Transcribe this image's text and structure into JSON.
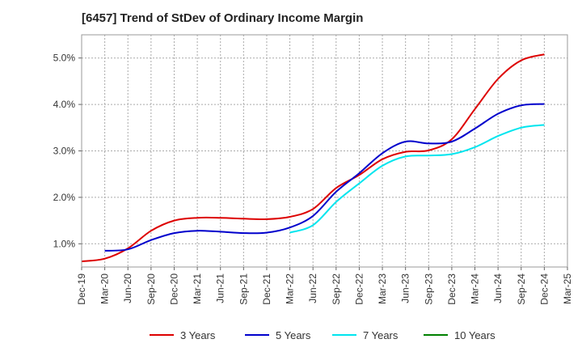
{
  "chart_data": {
    "type": "line",
    "title": "[6457]  Trend of StDev of Ordinary Income Margin",
    "xlabel": "",
    "ylabel": "",
    "x": [
      "Dec-19",
      "Mar-20",
      "Jun-20",
      "Sep-20",
      "Dec-20",
      "Mar-21",
      "Jun-21",
      "Sep-21",
      "Dec-21",
      "Mar-22",
      "Jun-22",
      "Sep-22",
      "Dec-22",
      "Mar-23",
      "Jun-23",
      "Sep-23",
      "Dec-23",
      "Mar-24",
      "Jun-24",
      "Sep-24",
      "Dec-24",
      "Mar-25"
    ],
    "ylim": [
      0.5,
      5.5
    ],
    "y_ticks": [
      1.0,
      2.0,
      3.0,
      4.0,
      5.0
    ],
    "y_tick_labels": [
      "1.0%",
      "2.0%",
      "3.0%",
      "4.0%",
      "5.0%"
    ],
    "grid": true,
    "legend_position": "bottom",
    "series": [
      {
        "name": "3 Years",
        "color": "#dd0000",
        "values": [
          0.62,
          0.68,
          0.9,
          1.28,
          1.5,
          1.56,
          1.56,
          1.54,
          1.53,
          1.58,
          1.75,
          2.2,
          2.48,
          2.82,
          2.98,
          3.01,
          3.25,
          3.9,
          4.55,
          4.95,
          5.08,
          null
        ]
      },
      {
        "name": "5 Years",
        "color": "#0000cc",
        "values": [
          null,
          0.85,
          0.88,
          1.08,
          1.23,
          1.28,
          1.26,
          1.23,
          1.24,
          1.35,
          1.6,
          2.12,
          2.52,
          2.95,
          3.2,
          3.16,
          3.2,
          3.48,
          3.8,
          3.98,
          4.01,
          null
        ]
      },
      {
        "name": "7 Years",
        "color": "#00e5ee",
        "values": [
          null,
          null,
          null,
          null,
          null,
          null,
          null,
          null,
          null,
          1.24,
          1.4,
          1.9,
          2.3,
          2.68,
          2.88,
          2.9,
          2.93,
          3.08,
          3.32,
          3.5,
          3.56,
          null
        ]
      },
      {
        "name": "10 Years",
        "color": "#008000",
        "values": [
          null,
          null,
          null,
          null,
          null,
          null,
          null,
          null,
          null,
          null,
          null,
          null,
          null,
          null,
          null,
          null,
          null,
          null,
          null,
          null,
          null,
          null
        ]
      }
    ]
  }
}
